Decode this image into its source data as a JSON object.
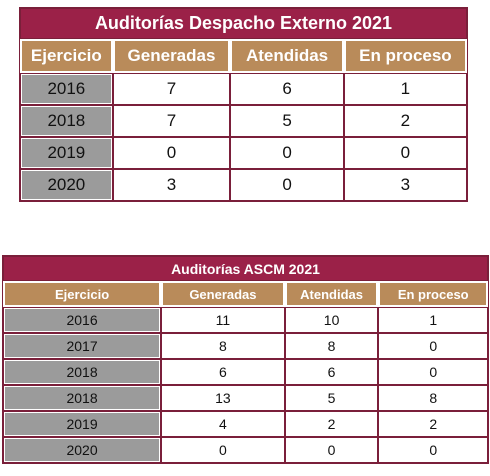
{
  "tables": [
    {
      "title": "Auditorías Despacho Externo 2021",
      "headers": [
        "Ejercicio",
        "Generadas",
        "Atendidas",
        "En proceso"
      ],
      "rows": [
        [
          "2016",
          "7",
          "6",
          "1"
        ],
        [
          "2018",
          "7",
          "5",
          "2"
        ],
        [
          "2019",
          "0",
          "0",
          "0"
        ],
        [
          "2020",
          "3",
          "0",
          "3"
        ]
      ]
    },
    {
      "title": "Auditorías ASCM 2021",
      "headers": [
        "Ejercicio",
        "Generadas",
        "Atendidas",
        "En proceso"
      ],
      "rows": [
        [
          "2016",
          "11",
          "10",
          "1"
        ],
        [
          "2017",
          "8",
          "8",
          "0"
        ],
        [
          "2018",
          "6",
          "6",
          "0"
        ],
        [
          "2018",
          "13",
          "5",
          "8"
        ],
        [
          "2019",
          "4",
          "2",
          "2"
        ],
        [
          "2020",
          "0",
          "0",
          "0"
        ]
      ]
    }
  ],
  "colors": {
    "title_bg": "#9b2148",
    "header_bg": "#b98b5a",
    "year_bg": "#9b9b9b",
    "border": "#7a1f3a"
  }
}
